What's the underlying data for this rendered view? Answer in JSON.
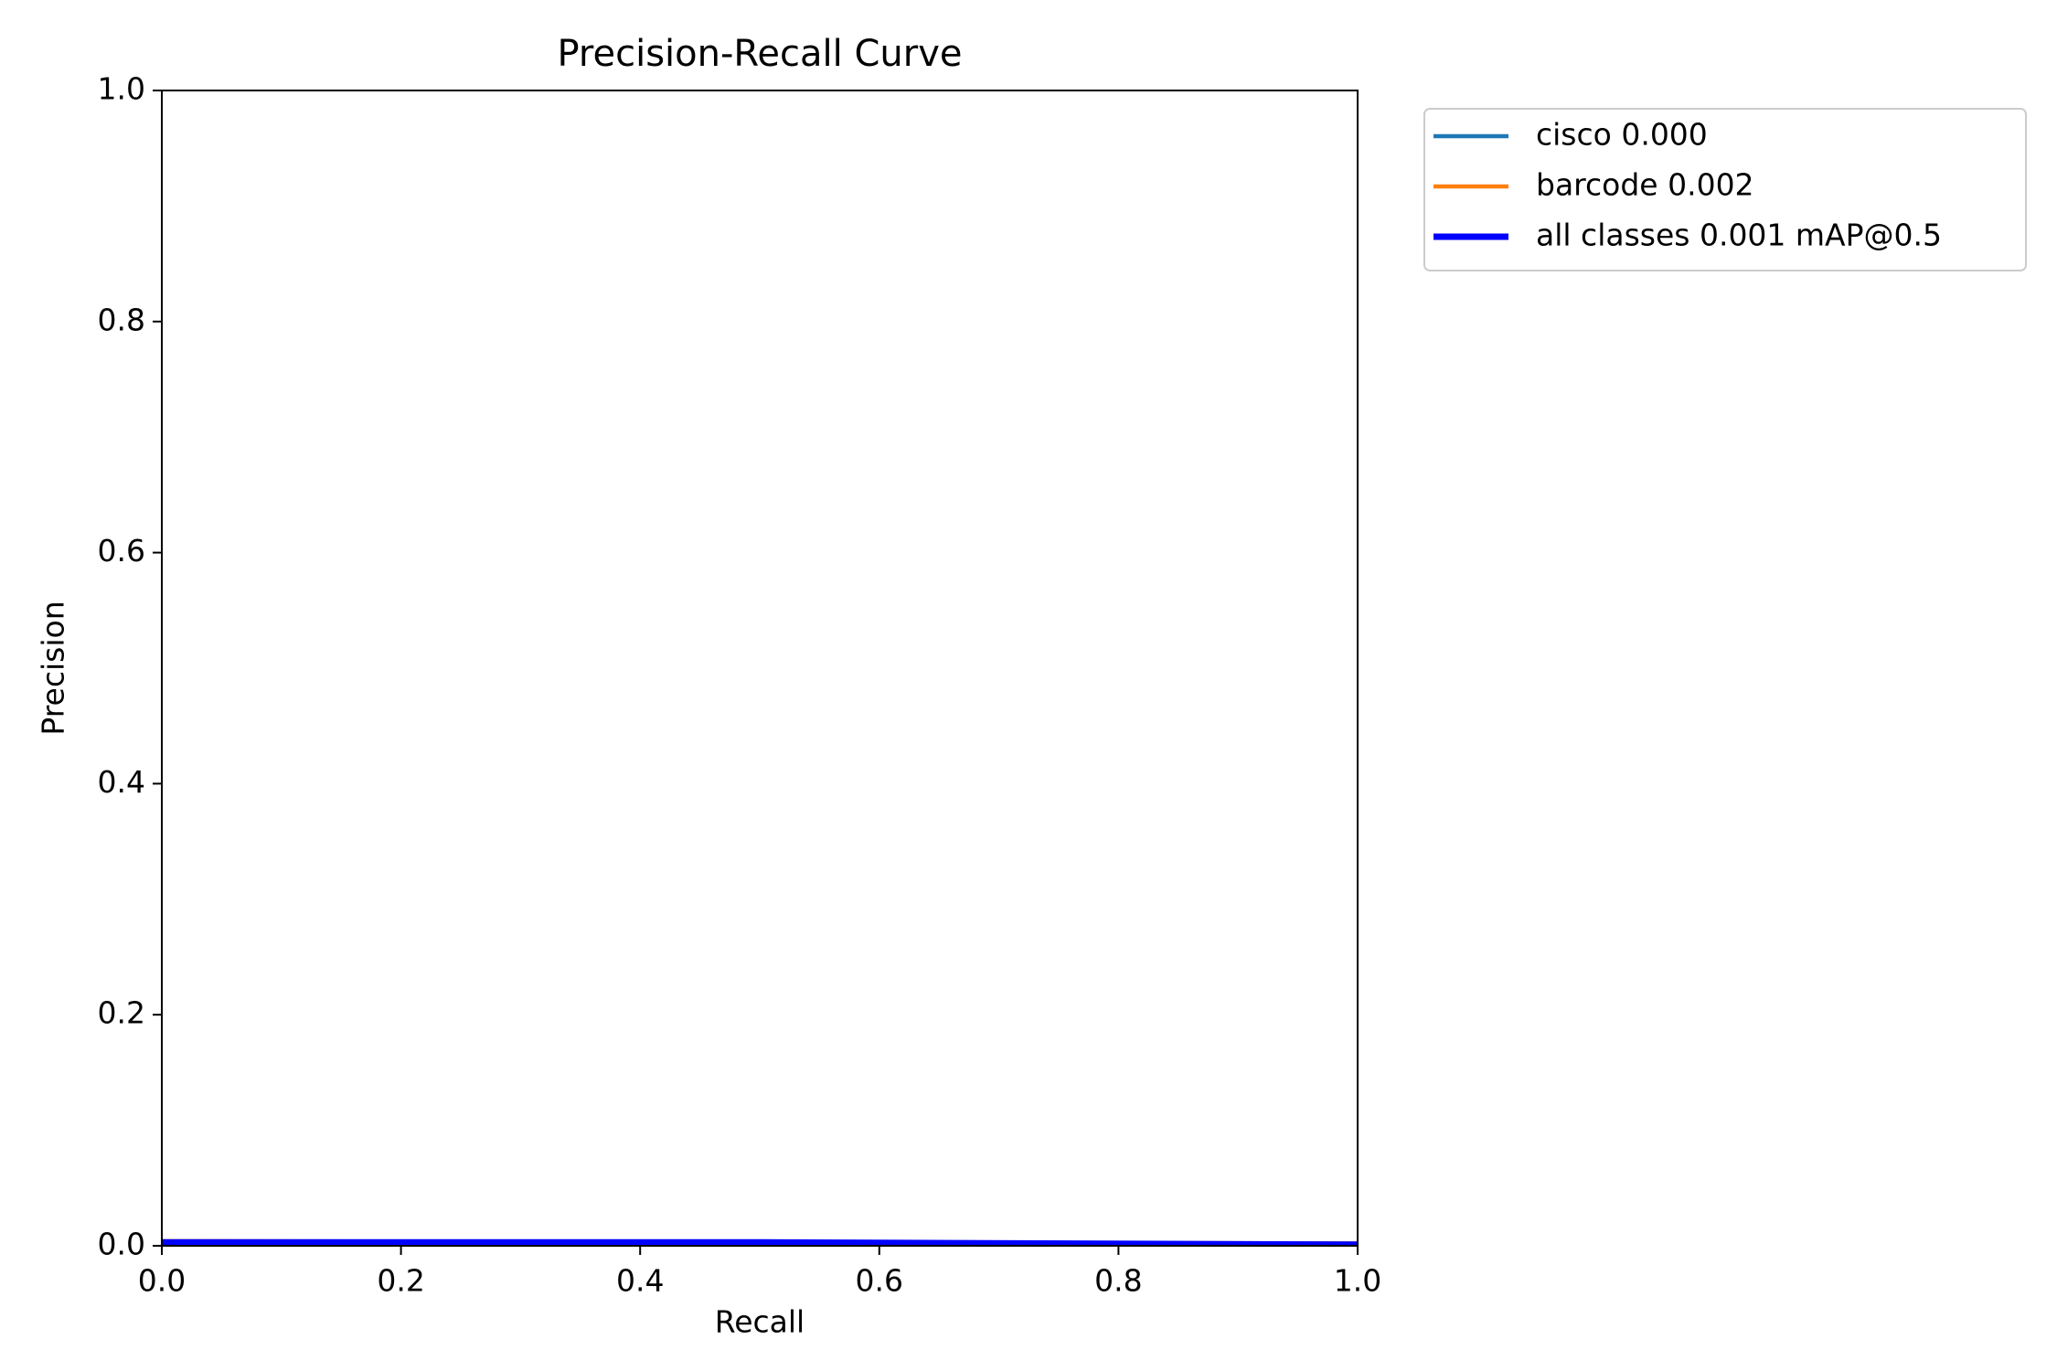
{
  "chart_data": {
    "type": "line",
    "title": "Precision-Recall Curve",
    "x_label": "Recall",
    "y_label": "Precision",
    "x": [
      0,
      0.5,
      1.0
    ],
    "series": [
      {
        "name": "cisco 0.000",
        "color": "#1f77b4",
        "width": 2,
        "values": [
          0,
          0,
          0
        ]
      },
      {
        "name": "barcode 0.002",
        "color": "#ff7f0e",
        "width": 2,
        "values": [
          0.004,
          0.003,
          0.002
        ]
      },
      {
        "name": "all classes 0.001 mAP@0.5",
        "color": "#0000ff",
        "width": 3,
        "values": [
          0.003,
          0.003,
          0.001
        ]
      }
    ],
    "xlim": [
      0,
      1.0
    ],
    "ylim": [
      0,
      1.0
    ],
    "xticks": [
      {
        "value": 0,
        "label": "0.0"
      },
      0.2,
      0.4,
      0.6,
      0.8,
      {
        "value": 1,
        "label": "1.0"
      }
    ],
    "yticks": [
      {
        "value": 0,
        "label": "0.0"
      },
      0.2,
      0.4,
      0.6,
      0.8,
      {
        "value": 1,
        "label": "1.0"
      }
    ],
    "legend": "outside-upper-right"
  }
}
